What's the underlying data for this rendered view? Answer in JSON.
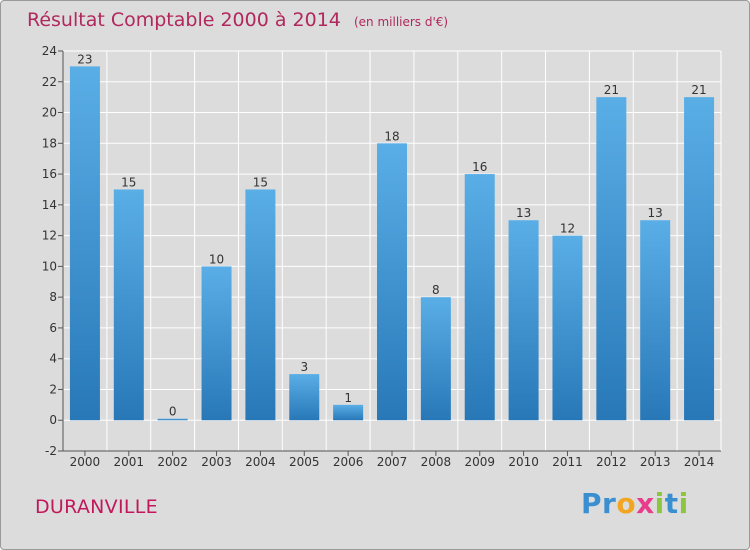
{
  "header": {
    "title": "Résultat Comptable 2000 à 2014",
    "subtitle": "(en milliers d'€)"
  },
  "footer": {
    "place": "DURANVILLE",
    "logo": [
      "P",
      "r",
      "o",
      "x",
      "i",
      "t",
      "i"
    ]
  },
  "colors": {
    "bar_top": "#5aaee6",
    "bar_bottom": "#2878b8",
    "title": "#b0285c",
    "logo": [
      "#3a8fd0",
      "#3a8fd0",
      "#f2a521",
      "#e83c8c",
      "#8cc63f",
      "#3a8fd0",
      "#8cc63f"
    ]
  },
  "chart_data": {
    "type": "bar",
    "categories": [
      "2000",
      "2001",
      "2002",
      "2003",
      "2004",
      "2005",
      "2006",
      "2007",
      "2008",
      "2009",
      "2010",
      "2011",
      "2012",
      "2013",
      "2014"
    ],
    "values": [
      23,
      15,
      0,
      10,
      15,
      3,
      1,
      18,
      8,
      16,
      13,
      12,
      21,
      13,
      21
    ],
    "data_labels": [
      "23",
      "15",
      "0",
      "10",
      "15",
      "3",
      "1",
      "18",
      "8",
      "16",
      "13",
      "12",
      "21",
      "13",
      "21"
    ],
    "y_ticks": [
      "-2",
      "0",
      "2",
      "4",
      "6",
      "8",
      "10",
      "12",
      "14",
      "16",
      "18",
      "20",
      "22",
      "24"
    ],
    "ylim": [
      -2,
      24
    ],
    "grid": true,
    "title": "Résultat Comptable 2000 à 2014",
    "xlabel": "",
    "ylabel": ""
  }
}
